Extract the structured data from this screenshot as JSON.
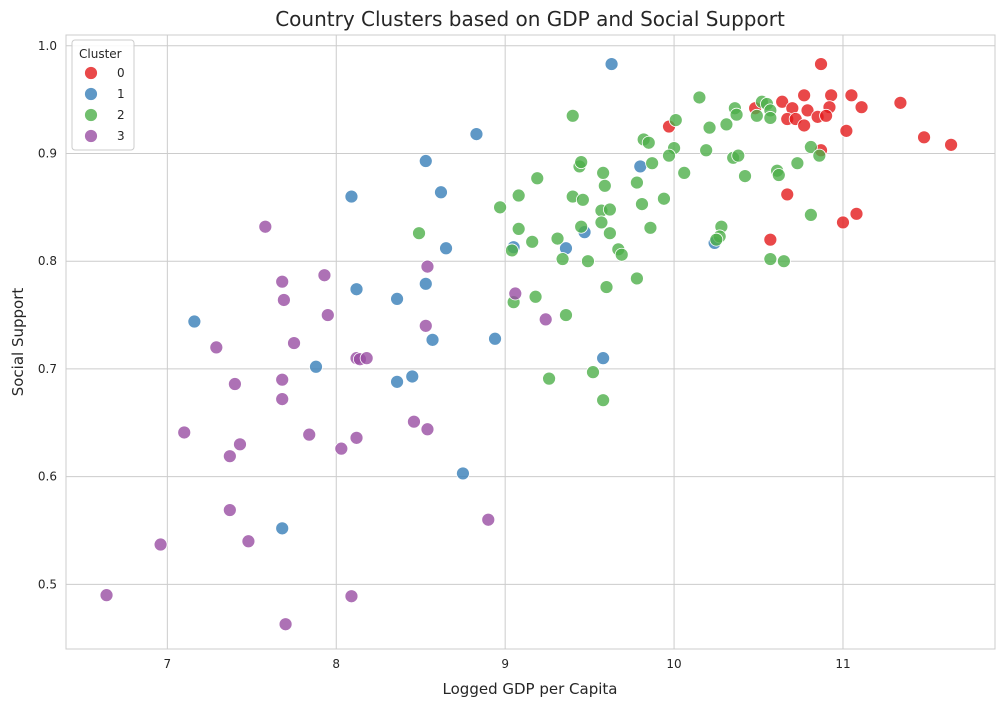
{
  "chart_data": {
    "type": "scatter",
    "title": "Country Clusters based on GDP and Social Support",
    "xlabel": "Logged GDP per Capita",
    "ylabel": "Social Support",
    "xlim": [
      6.4,
      11.9
    ],
    "ylim": [
      0.44,
      1.01
    ],
    "xticks": [
      "7",
      "8",
      "9",
      "10",
      "11"
    ],
    "xtick_values": [
      7,
      8,
      9,
      10,
      11
    ],
    "yticks": [
      "0.5",
      "0.6",
      "0.7",
      "0.8",
      "0.9",
      "1.0"
    ],
    "ytick_values": [
      0.5,
      0.6,
      0.7,
      0.8,
      0.9,
      1.0
    ],
    "grid": true,
    "legend": {
      "title": "Cluster",
      "placement": "top-left"
    },
    "series": [
      {
        "name": "0",
        "color": "#e41a1c",
        "points": [
          [
            9.97,
            0.925
          ],
          [
            10.48,
            0.942
          ],
          [
            10.64,
            0.948
          ],
          [
            10.7,
            0.942
          ],
          [
            10.77,
            0.954
          ],
          [
            10.87,
            0.983
          ],
          [
            10.93,
            0.954
          ],
          [
            10.92,
            0.943
          ],
          [
            10.79,
            0.94
          ],
          [
            10.85,
            0.934
          ],
          [
            10.9,
            0.935
          ],
          [
            10.67,
            0.932
          ],
          [
            10.72,
            0.932
          ],
          [
            10.77,
            0.926
          ],
          [
            11.05,
            0.954
          ],
          [
            11.11,
            0.943
          ],
          [
            11.02,
            0.921
          ],
          [
            11.34,
            0.947
          ],
          [
            11.48,
            0.915
          ],
          [
            11.64,
            0.908
          ],
          [
            10.87,
            0.903
          ],
          [
            10.67,
            0.862
          ],
          [
            11.08,
            0.844
          ],
          [
            11.0,
            0.836
          ],
          [
            10.57,
            0.82
          ]
        ]
      },
      {
        "name": "1",
        "color": "#377eb8",
        "points": [
          [
            9.63,
            0.983
          ],
          [
            8.83,
            0.918
          ],
          [
            8.53,
            0.893
          ],
          [
            8.62,
            0.864
          ],
          [
            8.09,
            0.86
          ],
          [
            9.8,
            0.888
          ],
          [
            9.05,
            0.813
          ],
          [
            9.36,
            0.812
          ],
          [
            9.47,
            0.827
          ],
          [
            8.65,
            0.812
          ],
          [
            8.12,
            0.774
          ],
          [
            8.36,
            0.765
          ],
          [
            8.53,
            0.779
          ],
          [
            8.57,
            0.727
          ],
          [
            8.94,
            0.728
          ],
          [
            7.16,
            0.744
          ],
          [
            7.88,
            0.702
          ],
          [
            8.36,
            0.688
          ],
          [
            8.45,
            0.693
          ],
          [
            9.58,
            0.71
          ],
          [
            8.75,
            0.603
          ],
          [
            7.68,
            0.552
          ],
          [
            10.24,
            0.817
          ]
        ]
      },
      {
        "name": "2",
        "color": "#4daf4a",
        "points": [
          [
            10.15,
            0.952
          ],
          [
            9.4,
            0.935
          ],
          [
            10.01,
            0.931
          ],
          [
            10.36,
            0.942
          ],
          [
            10.52,
            0.948
          ],
          [
            10.55,
            0.946
          ],
          [
            10.57,
            0.94
          ],
          [
            10.37,
            0.936
          ],
          [
            10.49,
            0.935
          ],
          [
            10.31,
            0.927
          ],
          [
            10.21,
            0.924
          ],
          [
            10.57,
            0.933
          ],
          [
            9.82,
            0.913
          ],
          [
            9.85,
            0.91
          ],
          [
            10.0,
            0.905
          ],
          [
            9.97,
            0.898
          ],
          [
            10.19,
            0.903
          ],
          [
            10.35,
            0.896
          ],
          [
            10.38,
            0.898
          ],
          [
            10.81,
            0.906
          ],
          [
            10.86,
            0.898
          ],
          [
            9.44,
            0.888
          ],
          [
            9.45,
            0.892
          ],
          [
            9.87,
            0.891
          ],
          [
            10.06,
            0.882
          ],
          [
            10.42,
            0.879
          ],
          [
            10.61,
            0.884
          ],
          [
            10.62,
            0.88
          ],
          [
            10.73,
            0.891
          ],
          [
            9.19,
            0.877
          ],
          [
            9.58,
            0.882
          ],
          [
            9.59,
            0.87
          ],
          [
            9.78,
            0.873
          ],
          [
            9.08,
            0.861
          ],
          [
            9.4,
            0.86
          ],
          [
            9.46,
            0.857
          ],
          [
            9.57,
            0.847
          ],
          [
            9.62,
            0.848
          ],
          [
            9.81,
            0.853
          ],
          [
            9.94,
            0.858
          ],
          [
            8.97,
            0.85
          ],
          [
            10.81,
            0.843
          ],
          [
            8.49,
            0.826
          ],
          [
            9.08,
            0.83
          ],
          [
            9.45,
            0.832
          ],
          [
            9.57,
            0.836
          ],
          [
            9.62,
            0.826
          ],
          [
            9.86,
            0.831
          ],
          [
            10.28,
            0.832
          ],
          [
            10.27,
            0.823
          ],
          [
            10.25,
            0.82
          ],
          [
            9.16,
            0.818
          ],
          [
            9.31,
            0.821
          ],
          [
            9.04,
            0.81
          ],
          [
            9.67,
            0.811
          ],
          [
            9.69,
            0.806
          ],
          [
            9.34,
            0.802
          ],
          [
            9.49,
            0.8
          ],
          [
            10.57,
            0.802
          ],
          [
            10.65,
            0.8
          ],
          [
            9.6,
            0.776
          ],
          [
            9.78,
            0.784
          ],
          [
            9.18,
            0.767
          ],
          [
            9.05,
            0.762
          ],
          [
            9.36,
            0.75
          ],
          [
            9.26,
            0.691
          ],
          [
            9.52,
            0.697
          ],
          [
            9.58,
            0.671
          ]
        ]
      },
      {
        "name": "3",
        "color": "#984ea3",
        "points": [
          [
            7.58,
            0.832
          ],
          [
            7.93,
            0.787
          ],
          [
            7.68,
            0.781
          ],
          [
            7.69,
            0.764
          ],
          [
            7.95,
            0.75
          ],
          [
            8.54,
            0.795
          ],
          [
            9.06,
            0.77
          ],
          [
            9.24,
            0.746
          ],
          [
            7.29,
            0.72
          ],
          [
            7.75,
            0.724
          ],
          [
            8.53,
            0.74
          ],
          [
            8.12,
            0.71
          ],
          [
            8.14,
            0.709
          ],
          [
            8.18,
            0.71
          ],
          [
            7.4,
            0.686
          ],
          [
            7.68,
            0.69
          ],
          [
            7.68,
            0.672
          ],
          [
            7.1,
            0.641
          ],
          [
            7.43,
            0.63
          ],
          [
            7.84,
            0.639
          ],
          [
            7.37,
            0.619
          ],
          [
            8.03,
            0.626
          ],
          [
            8.12,
            0.636
          ],
          [
            8.46,
            0.651
          ],
          [
            8.54,
            0.644
          ],
          [
            7.37,
            0.569
          ],
          [
            7.48,
            0.54
          ],
          [
            6.96,
            0.537
          ],
          [
            8.9,
            0.56
          ],
          [
            6.64,
            0.49
          ],
          [
            8.09,
            0.489
          ],
          [
            7.7,
            0.463
          ]
        ]
      }
    ]
  }
}
